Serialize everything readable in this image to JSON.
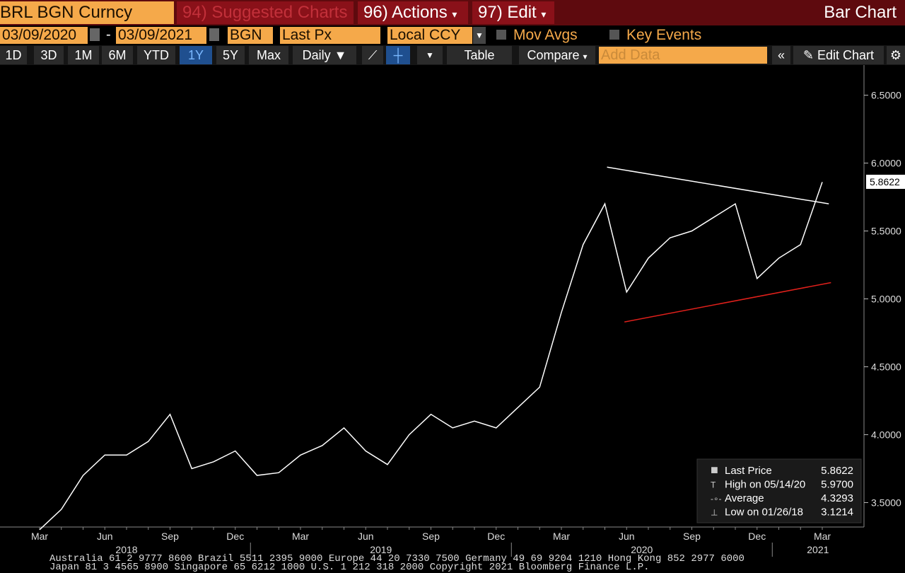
{
  "toolbar": {
    "ticker": "BRL BGN Curncy",
    "tabs": [
      {
        "num": "94)",
        "label": "Suggested Charts"
      },
      {
        "num": "96)",
        "label": "Actions"
      },
      {
        "num": "97)",
        "label": "Edit"
      }
    ],
    "view": "Bar Chart",
    "start_date": "03/09/2020",
    "end_date": "03/09/2021",
    "source": "BGN",
    "field": "Last Px",
    "currency": "Local CCY",
    "mov_avgs": "Mov Avgs",
    "key_events": "Key Events",
    "periods": [
      "1D",
      "3D",
      "1M",
      "6M",
      "YTD",
      "1Y",
      "5Y",
      "Max"
    ],
    "active_period": 5,
    "frequency": "Daily",
    "table": "Table",
    "compare": "Compare",
    "add_data": "Add Data",
    "edit_chart": "Edit Chart"
  },
  "chart_data": {
    "type": "line",
    "categories": [
      "Mar",
      null,
      null,
      "Jun",
      null,
      null,
      "Sep",
      null,
      null,
      "Dec",
      null,
      null,
      "Mar",
      null,
      null,
      "Jun",
      null,
      null,
      "Sep",
      null,
      null,
      "Dec",
      null,
      null,
      "Mar",
      null,
      null,
      "Jun",
      null,
      null,
      "Sep",
      null,
      null,
      "Dec",
      null,
      null,
      "Mar"
    ],
    "year_labels": [
      "2018",
      "2019",
      "2020",
      "2021"
    ],
    "series": [
      {
        "name": "Last Price",
        "color": "#ffffff",
        "values": [
          3.3,
          3.45,
          3.7,
          3.85,
          3.85,
          3.95,
          4.15,
          3.75,
          3.8,
          3.88,
          3.7,
          3.72,
          3.85,
          3.92,
          4.05,
          3.88,
          3.78,
          4.0,
          4.15,
          4.05,
          4.1,
          4.05,
          4.2,
          4.35,
          4.9,
          5.4,
          5.7,
          5.05,
          5.3,
          5.45,
          5.5,
          5.6,
          5.7,
          5.15,
          5.3,
          5.4,
          5.86
        ]
      }
    ],
    "trendlines": [
      {
        "color": "#ffffff",
        "values": [
          5.97,
          5.7
        ]
      },
      {
        "color": "#e0201b",
        "values": [
          4.83,
          5.12
        ]
      }
    ],
    "ylim": [
      3.32,
      6.68
    ],
    "yticks": [
      {
        "value": 3.5,
        "label": "3.5000"
      },
      {
        "value": 4,
        "label": "4.0000"
      },
      {
        "value": 4.5,
        "label": "4.5000"
      },
      {
        "value": 5,
        "label": "5.0000"
      },
      {
        "value": 5.5,
        "label": "5.5000"
      },
      {
        "value": 6,
        "label": "6.0000"
      },
      {
        "value": 6.5,
        "label": "6.5000"
      }
    ],
    "last_price": 5.8622,
    "legend": [
      {
        "label": "Last Price",
        "value": "5.8622"
      },
      {
        "label": "High on 05/14/20",
        "value": "5.9700"
      },
      {
        "label": "Average",
        "value": "4.3293"
      },
      {
        "label": "Low on 01/26/18",
        "value": "3.1214"
      }
    ]
  },
  "footer": [
    "Australia 61 2 9777 8600 Brazil 5511 2395 9000 Europe 44 20 7330 7500 Germany 49 69 9204 1210 Hong Kong 852 2977 6000",
    "Japan 81 3 4565 8900 Singapore 65 6212 1000 U.S. 1 212 318 2000 Copyright 2021 Bloomberg Finance L.P."
  ]
}
